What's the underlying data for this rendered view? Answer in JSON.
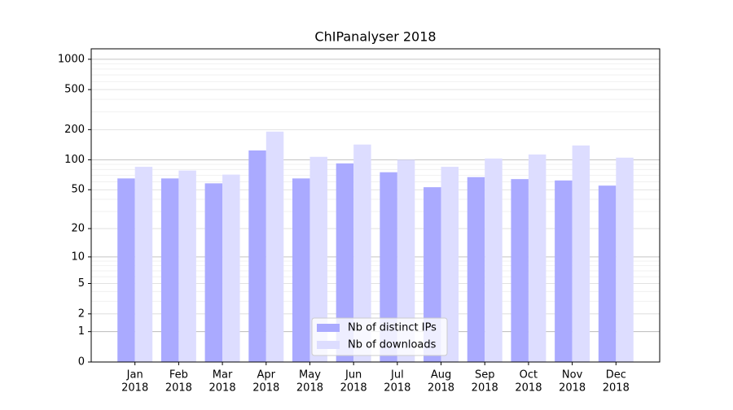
{
  "chart_data": {
    "type": "bar",
    "title": "ChIPanalyser 2018",
    "categories": [
      [
        "Jan",
        "2018"
      ],
      [
        "Feb",
        "2018"
      ],
      [
        "Mar",
        "2018"
      ],
      [
        "Apr",
        "2018"
      ],
      [
        "May",
        "2018"
      ],
      [
        "Jun",
        "2018"
      ],
      [
        "Jul",
        "2018"
      ],
      [
        "Aug",
        "2018"
      ],
      [
        "Sep",
        "2018"
      ],
      [
        "Oct",
        "2018"
      ],
      [
        "Nov",
        "2018"
      ],
      [
        "Dec",
        "2018"
      ]
    ],
    "series": [
      {
        "name": "Nb of distinct IPs",
        "color": "#aaaaff",
        "values": [
          65,
          65,
          58,
          124,
          65,
          92,
          75,
          53,
          67,
          64,
          62,
          55
        ]
      },
      {
        "name": "Nb of downloads",
        "color": "#ddddff",
        "values": [
          85,
          78,
          71,
          191,
          107,
          142,
          100,
          85,
          103,
          113,
          139,
          105
        ]
      }
    ],
    "yscale": "symlog",
    "ylim": [
      0,
      1270
    ],
    "yticks": [
      0,
      1,
      2,
      5,
      10,
      20,
      50,
      100,
      200,
      500,
      1000
    ],
    "grid": true,
    "legend": "lower center"
  }
}
